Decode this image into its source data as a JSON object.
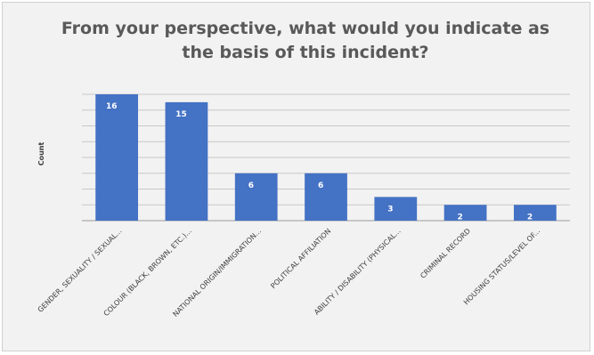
{
  "chart_data": {
    "type": "bar",
    "title": "From your perspective, what would you indicate as the basis of this incident?",
    "ylabel": "Count",
    "xlabel": "",
    "categories": [
      "GENDER, SEXUALITY / SEXUAL...",
      "COLOUR (BLACK, BROWN, ETC.)...",
      "NATIONAL ORIGIN/IMMIGRATION...",
      "POLITICAL AFFILIATION",
      "ABILITY / DISABILITY (PHYSICAL...",
      "CRIMINAL RECORD",
      "HOUSING STATUS/LEVEL OF..."
    ],
    "values": [
      16,
      15,
      6,
      6,
      3,
      2,
      2
    ],
    "ylim": [
      0,
      16
    ],
    "grid": true,
    "legend": "none",
    "colors": {
      "bar": "#4472c4",
      "grid": "#c8c8c8",
      "axis": "#9a9a9a"
    }
  }
}
